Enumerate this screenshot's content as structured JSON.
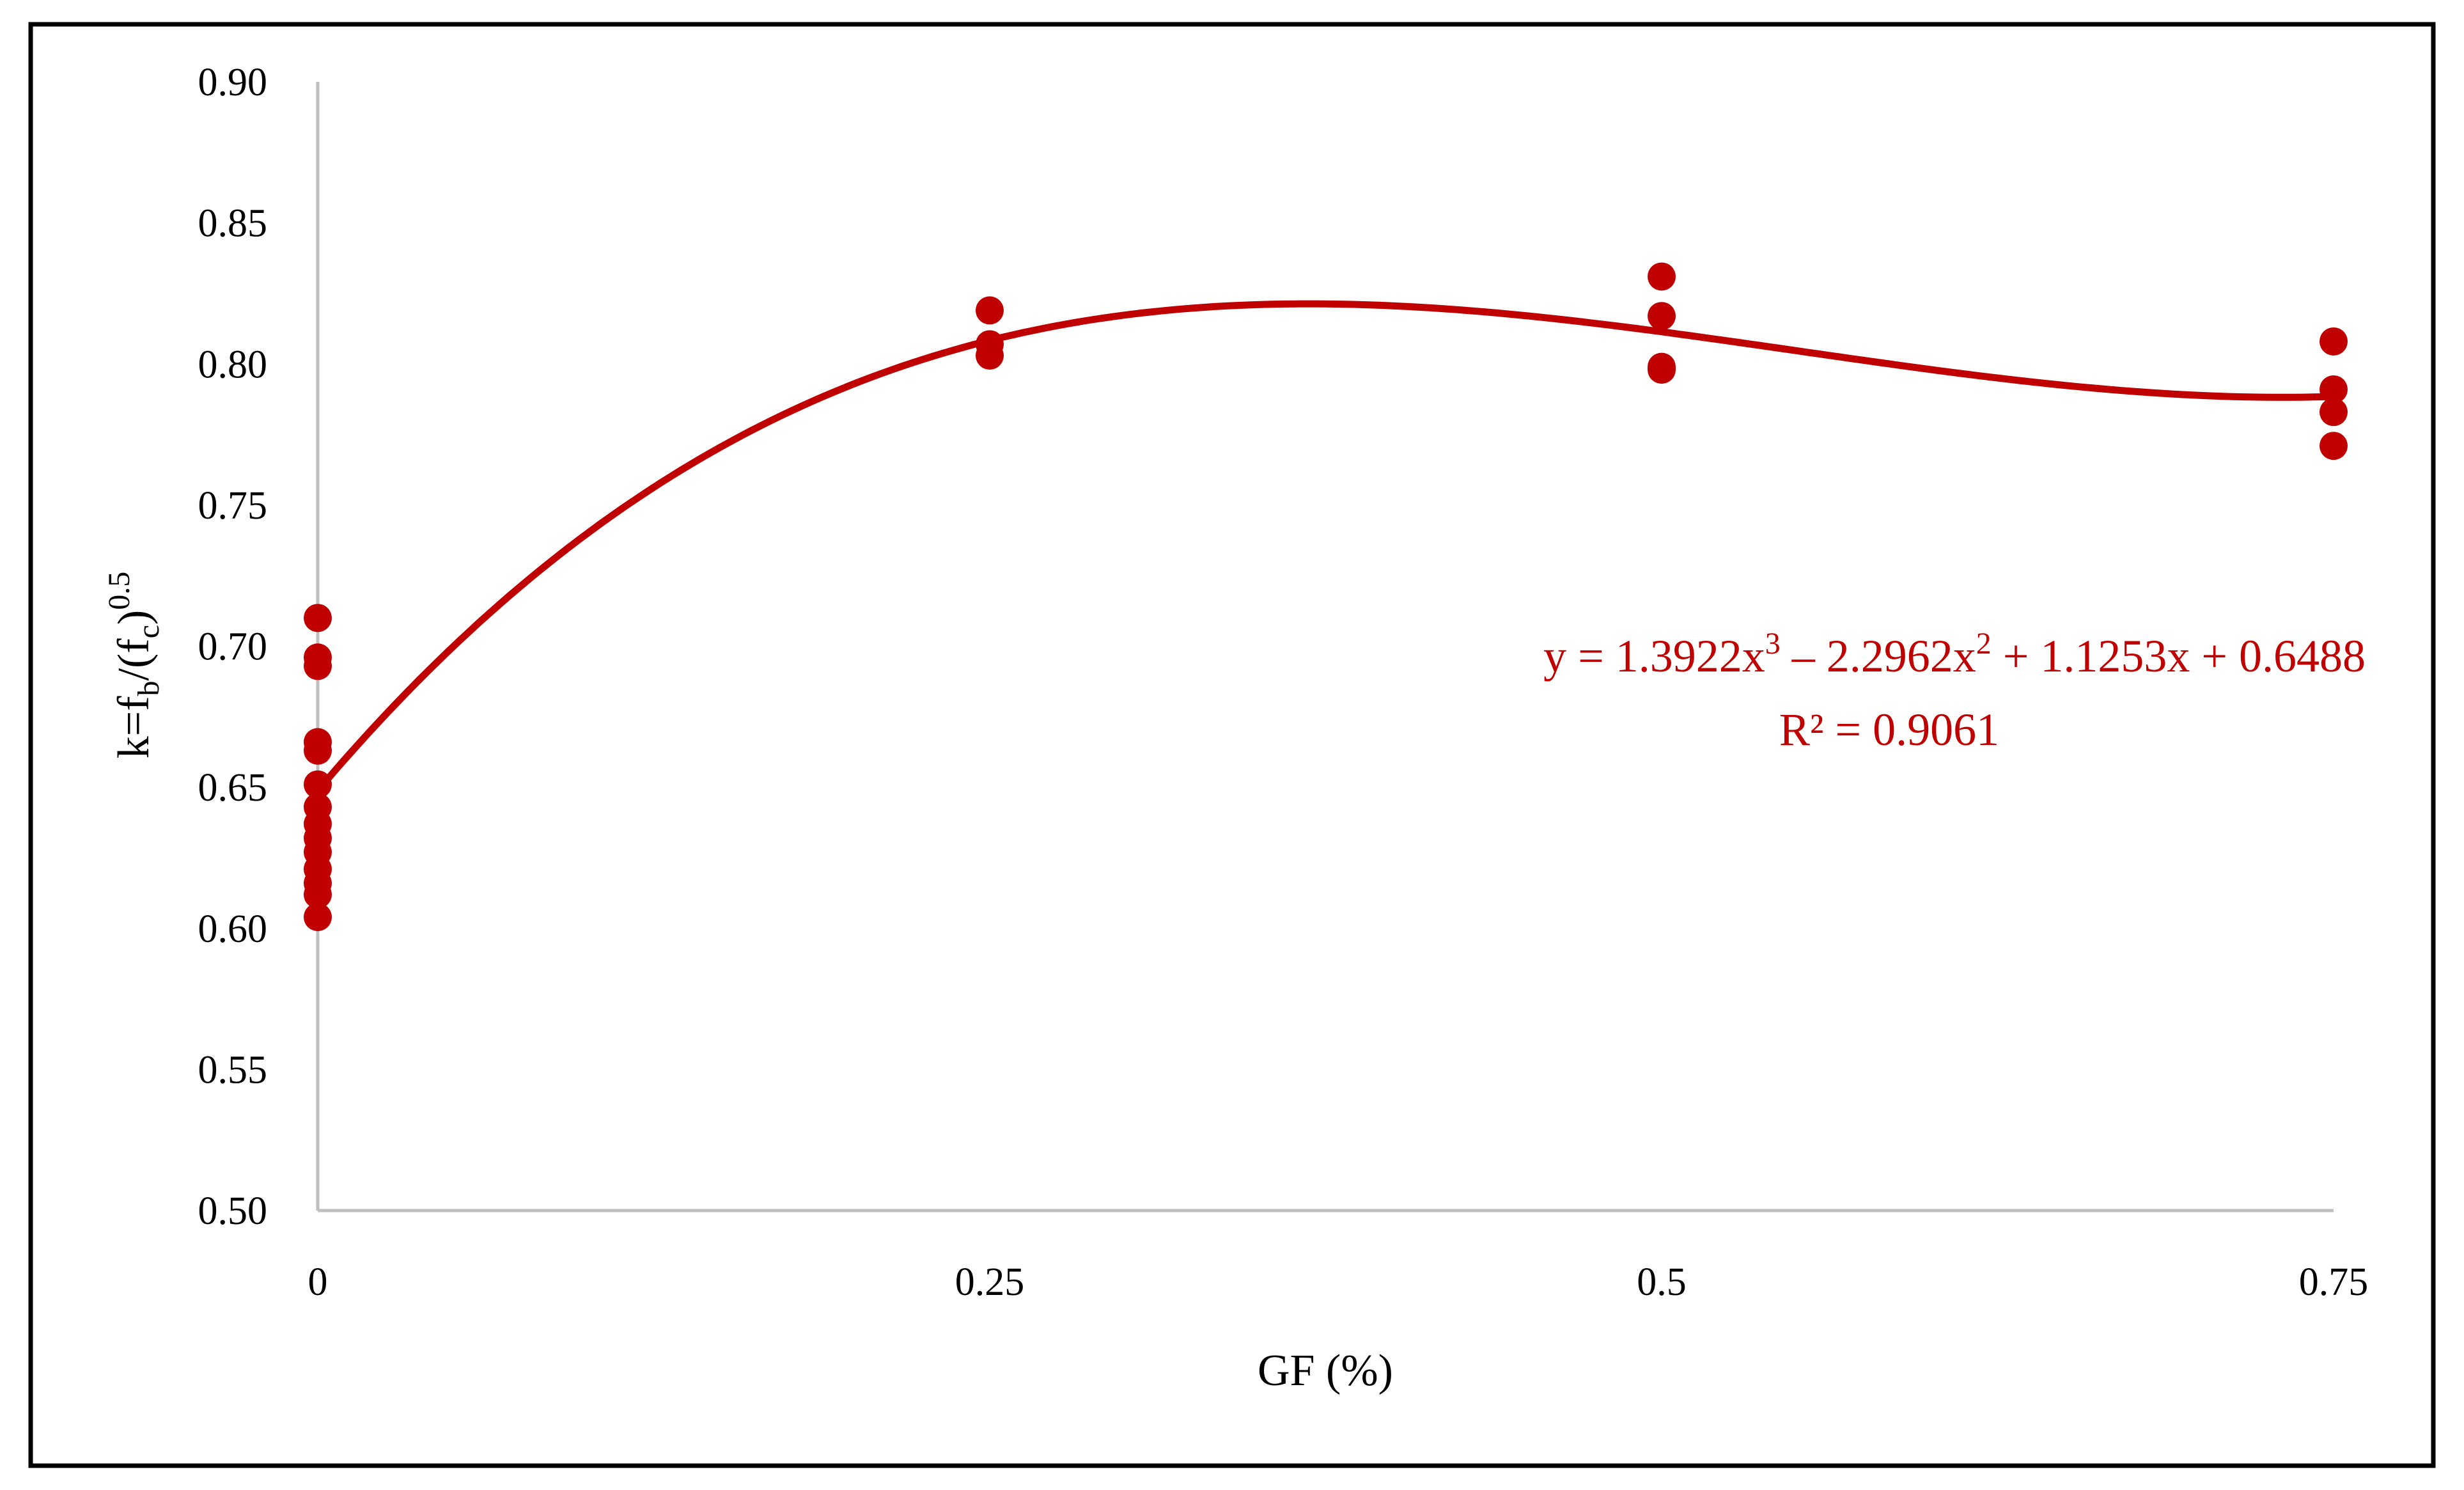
{
  "chart_data": {
    "type": "scatter",
    "title": "",
    "xlabel": "GF (%)",
    "ylabel": {
      "base": "k=f",
      "sub1": "b",
      "mid": "/(f",
      "sub2": "c",
      "tail": ")",
      "sup": "0.5"
    },
    "x_ticks": [
      "0",
      "0.25",
      "0.5",
      "0.75"
    ],
    "x_tick_values": [
      0,
      0.25,
      0.5,
      0.75
    ],
    "xlim": [
      0,
      0.75
    ],
    "y_ticks": [
      "0.50",
      "0.55",
      "0.60",
      "0.65",
      "0.70",
      "0.75",
      "0.80",
      "0.85",
      "0.90"
    ],
    "y_tick_values": [
      0.5,
      0.55,
      0.6,
      0.65,
      0.7,
      0.75,
      0.8,
      0.85,
      0.9
    ],
    "ylim": [
      0.5,
      0.9
    ],
    "grid": false,
    "series": [
      {
        "type": "scatter",
        "color": "#C00000",
        "points": [
          {
            "x": 0,
            "y": 0.71
          },
          {
            "x": 0,
            "y": 0.696
          },
          {
            "x": 0,
            "y": 0.693
          },
          {
            "x": 0,
            "y": 0.666
          },
          {
            "x": 0,
            "y": 0.663
          },
          {
            "x": 0,
            "y": 0.651
          },
          {
            "x": 0,
            "y": 0.643
          },
          {
            "x": 0,
            "y": 0.637
          },
          {
            "x": 0,
            "y": 0.632
          },
          {
            "x": 0,
            "y": 0.627
          },
          {
            "x": 0,
            "y": 0.621
          },
          {
            "x": 0,
            "y": 0.616
          },
          {
            "x": 0,
            "y": 0.612
          },
          {
            "x": 0,
            "y": 0.604
          },
          {
            "x": 0.25,
            "y": 0.819
          },
          {
            "x": 0.25,
            "y": 0.807
          },
          {
            "x": 0.25,
            "y": 0.803
          },
          {
            "x": 0.5,
            "y": 0.831
          },
          {
            "x": 0.5,
            "y": 0.817
          },
          {
            "x": 0.5,
            "y": 0.799
          },
          {
            "x": 0.5,
            "y": 0.798
          },
          {
            "x": 0.75,
            "y": 0.808
          },
          {
            "x": 0.75,
            "y": 0.791
          },
          {
            "x": 0.75,
            "y": 0.783
          },
          {
            "x": 0.75,
            "y": 0.771
          }
        ]
      },
      {
        "type": "trendline",
        "color": "#C00000",
        "fit": "polynomial",
        "coefficients": [
          1.3922,
          -2.2962,
          1.1253,
          0.6488
        ]
      }
    ],
    "annotation": {
      "equation": {
        "p1": "y = 1.3922x",
        "sup1": "3",
        "p2": " – 2.2962x",
        "sup2": "2",
        "p3": " + 1.1253x + 0.6488"
      },
      "r_squared": "R² = 0.9061",
      "color": "#C00000"
    },
    "axis_color": "#BFBFBF",
    "border_color": "#000000"
  }
}
